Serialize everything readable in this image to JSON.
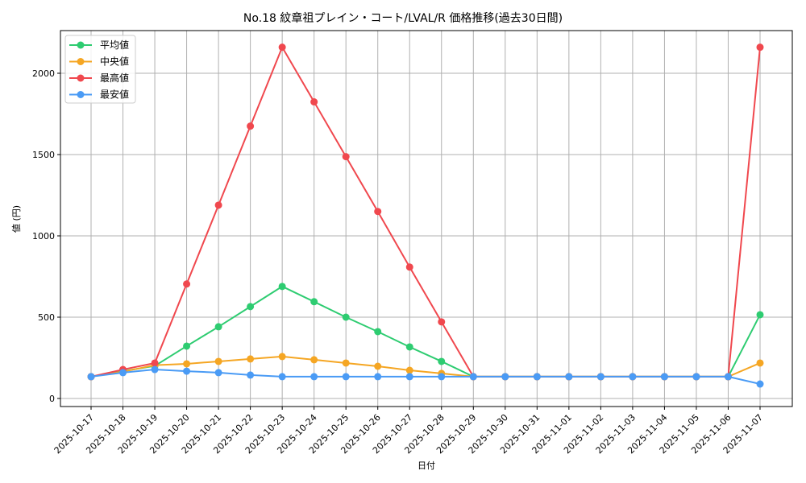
{
  "chart_data": {
    "type": "line",
    "title": "No.18 紋章祖プレイン・コート/LVAL/R 価格推移(過去30日間)",
    "xlabel": "日付",
    "ylabel": "値 (円)",
    "ylim": [
      -40,
      2255
    ],
    "yticks": [
      0,
      500,
      1000,
      1500,
      2000
    ],
    "grid": true,
    "legend_position": "upper left",
    "categories": [
      "2025-10-17",
      "2025-10-18",
      "2025-10-19",
      "2025-10-20",
      "2025-10-21",
      "2025-10-22",
      "2025-10-23",
      "2025-10-24",
      "2025-10-25",
      "2025-10-26",
      "2025-10-27",
      "2025-10-28",
      "2025-10-29",
      "2025-10-30",
      "2025-10-31",
      "2025-11-01",
      "2025-11-02",
      "2025-11-03",
      "2025-11-04",
      "2025-11-05",
      "2025-11-06",
      "2025-11-07"
    ],
    "series": [
      {
        "name": "平均値",
        "color": "#2ecc71",
        "values": [
          134,
          168,
          200,
          322,
          441,
          565,
          689,
          595,
          500,
          411,
          317,
          228,
          134,
          134,
          134,
          134,
          134,
          134,
          134,
          134,
          134,
          515
        ]
      },
      {
        "name": "中央値",
        "color": "#f5a623",
        "values": [
          134,
          165,
          205,
          213,
          228,
          243,
          258,
          238,
          218,
          198,
          173,
          154,
          134,
          134,
          134,
          134,
          134,
          134,
          134,
          134,
          134,
          218
        ]
      },
      {
        "name": "最高値",
        "color": "#f0484e",
        "values": [
          134,
          178,
          218,
          704,
          1189,
          1675,
          2160,
          1824,
          1487,
          1150,
          808,
          471,
          134,
          134,
          134,
          134,
          134,
          134,
          134,
          134,
          134,
          2160
        ]
      },
      {
        "name": "最安値",
        "color": "#4a9bf5",
        "values": [
          134,
          159,
          178,
          168,
          159,
          144,
          134,
          134,
          134,
          134,
          134,
          134,
          134,
          134,
          134,
          134,
          134,
          134,
          134,
          134,
          134,
          89
        ]
      }
    ]
  }
}
